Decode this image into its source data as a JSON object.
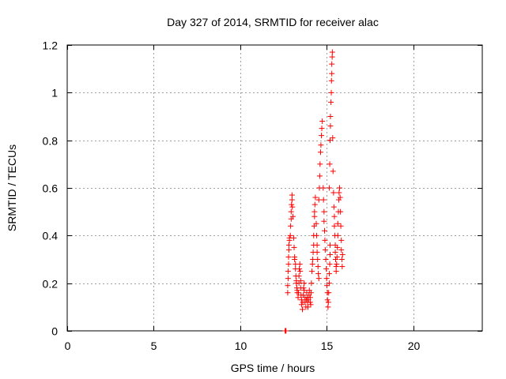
{
  "chart_data": {
    "type": "scatter",
    "title": "Day 327 of 2014, SRMTID for receiver alac",
    "xlabel": "GPS time / hours",
    "ylabel": "SRMTID / TECUs",
    "xlim": [
      0,
      24
    ],
    "ylim": [
      0,
      1.2
    ],
    "xticks": [
      0,
      5,
      10,
      15,
      20
    ],
    "xtick_labels": [
      "0",
      "5",
      "10",
      "15",
      "20"
    ],
    "yticks": [
      0,
      0.2,
      0.4,
      0.6,
      0.8,
      1.0,
      1.2
    ],
    "ytick_labels": [
      "0",
      "0.2",
      "0.4",
      "0.6",
      "0.8",
      "1",
      "1.2"
    ],
    "grid": true,
    "marker": "+",
    "color": "#ff0000",
    "series": [
      {
        "name": "alac",
        "points": [
          [
            12.6,
            0.0
          ],
          [
            12.62,
            0.0
          ],
          [
            12.65,
            0.0
          ],
          [
            12.75,
            0.16
          ],
          [
            12.75,
            0.19
          ],
          [
            12.77,
            0.22
          ],
          [
            12.77,
            0.25
          ],
          [
            12.8,
            0.28
          ],
          [
            12.8,
            0.31
          ],
          [
            12.82,
            0.34
          ],
          [
            12.82,
            0.36
          ],
          [
            12.85,
            0.38
          ],
          [
            12.85,
            0.39
          ],
          [
            12.9,
            0.4
          ],
          [
            12.92,
            0.44
          ],
          [
            12.95,
            0.47
          ],
          [
            12.95,
            0.5
          ],
          [
            12.97,
            0.53
          ],
          [
            13.0,
            0.55
          ],
          [
            13.0,
            0.57
          ],
          [
            13.02,
            0.52
          ],
          [
            13.05,
            0.48
          ],
          [
            13.1,
            0.39
          ],
          [
            13.12,
            0.35
          ],
          [
            13.15,
            0.31
          ],
          [
            13.15,
            0.3
          ],
          [
            13.2,
            0.28
          ],
          [
            13.2,
            0.26
          ],
          [
            13.22,
            0.23
          ],
          [
            13.25,
            0.21
          ],
          [
            13.25,
            0.2
          ],
          [
            13.28,
            0.18
          ],
          [
            13.3,
            0.17
          ],
          [
            13.3,
            0.16
          ],
          [
            13.35,
            0.14
          ],
          [
            13.37,
            0.16
          ],
          [
            13.4,
            0.2
          ],
          [
            13.4,
            0.23
          ],
          [
            13.42,
            0.26
          ],
          [
            13.45,
            0.28
          ],
          [
            13.47,
            0.25
          ],
          [
            13.5,
            0.21
          ],
          [
            13.5,
            0.18
          ],
          [
            13.52,
            0.15
          ],
          [
            13.55,
            0.13
          ],
          [
            13.55,
            0.11
          ],
          [
            13.6,
            0.09
          ],
          [
            13.62,
            0.12
          ],
          [
            13.65,
            0.15
          ],
          [
            13.67,
            0.18
          ],
          [
            13.7,
            0.2
          ],
          [
            13.7,
            0.17
          ],
          [
            13.75,
            0.14
          ],
          [
            13.75,
            0.12
          ],
          [
            13.8,
            0.1
          ],
          [
            13.82,
            0.13
          ],
          [
            13.85,
            0.16
          ],
          [
            13.88,
            0.14
          ],
          [
            13.9,
            0.12
          ],
          [
            13.92,
            0.1
          ],
          [
            13.95,
            0.13
          ],
          [
            13.98,
            0.15
          ],
          [
            14.0,
            0.17
          ],
          [
            14.05,
            0.14
          ],
          [
            14.05,
            0.12
          ],
          [
            14.08,
            0.11
          ],
          [
            14.1,
            0.16
          ],
          [
            14.12,
            0.2
          ],
          [
            14.15,
            0.25
          ],
          [
            14.18,
            0.28
          ],
          [
            14.2,
            0.3
          ],
          [
            14.22,
            0.33
          ],
          [
            14.25,
            0.36
          ],
          [
            14.25,
            0.4
          ],
          [
            14.28,
            0.44
          ],
          [
            14.3,
            0.48
          ],
          [
            14.3,
            0.5
          ],
          [
            14.32,
            0.53
          ],
          [
            14.35,
            0.56
          ],
          [
            14.4,
            0.45
          ],
          [
            14.42,
            0.4
          ],
          [
            14.45,
            0.36
          ],
          [
            14.45,
            0.33
          ],
          [
            14.48,
            0.3
          ],
          [
            14.5,
            0.27
          ],
          [
            14.52,
            0.24
          ],
          [
            14.55,
            0.22
          ],
          [
            14.55,
            0.55
          ],
          [
            14.58,
            0.6
          ],
          [
            14.6,
            0.65
          ],
          [
            14.62,
            0.7
          ],
          [
            14.65,
            0.75
          ],
          [
            14.67,
            0.78
          ],
          [
            14.7,
            0.82
          ],
          [
            14.72,
            0.85
          ],
          [
            14.75,
            0.88
          ],
          [
            14.8,
            0.6
          ],
          [
            14.82,
            0.55
          ],
          [
            14.85,
            0.5
          ],
          [
            14.85,
            0.46
          ],
          [
            14.88,
            0.42
          ],
          [
            14.9,
            0.38
          ],
          [
            14.92,
            0.34
          ],
          [
            14.95,
            0.3
          ],
          [
            14.98,
            0.26
          ],
          [
            15.0,
            0.22
          ],
          [
            15.02,
            0.19
          ],
          [
            15.05,
            0.16
          ],
          [
            15.05,
            0.13
          ],
          [
            15.08,
            0.1
          ],
          [
            15.1,
            0.12
          ],
          [
            15.12,
            0.16
          ],
          [
            15.15,
            0.2
          ],
          [
            15.15,
            0.24
          ],
          [
            15.18,
            0.28
          ],
          [
            15.2,
            0.32
          ],
          [
            15.2,
            0.36
          ],
          [
            15.15,
            0.6
          ],
          [
            15.18,
            0.7
          ],
          [
            15.2,
            0.8
          ],
          [
            15.22,
            0.86
          ],
          [
            15.22,
            0.9
          ],
          [
            15.25,
            0.96
          ],
          [
            15.27,
            1.0
          ],
          [
            15.28,
            1.05
          ],
          [
            15.3,
            1.08
          ],
          [
            15.3,
            1.12
          ],
          [
            15.32,
            1.15
          ],
          [
            15.33,
            1.17
          ],
          [
            15.35,
            0.81
          ],
          [
            15.37,
            0.67
          ],
          [
            15.4,
            0.58
          ],
          [
            15.42,
            0.52
          ],
          [
            15.45,
            0.48
          ],
          [
            15.45,
            0.44
          ],
          [
            15.48,
            0.4
          ],
          [
            15.5,
            0.36
          ],
          [
            15.5,
            0.33
          ],
          [
            15.52,
            0.3
          ],
          [
            15.55,
            0.27
          ],
          [
            15.55,
            0.25
          ],
          [
            15.58,
            0.28
          ],
          [
            15.6,
            0.31
          ],
          [
            15.62,
            0.35
          ],
          [
            15.65,
            0.4
          ],
          [
            15.65,
            0.45
          ],
          [
            15.68,
            0.5
          ],
          [
            15.7,
            0.55
          ],
          [
            15.72,
            0.58
          ],
          [
            15.75,
            0.6
          ],
          [
            15.78,
            0.56
          ],
          [
            15.8,
            0.5
          ],
          [
            15.82,
            0.44
          ],
          [
            15.85,
            0.38
          ],
          [
            15.85,
            0.34
          ],
          [
            15.88,
            0.3
          ],
          [
            15.9,
            0.27
          ],
          [
            15.92,
            0.32
          ]
        ]
      }
    ]
  }
}
